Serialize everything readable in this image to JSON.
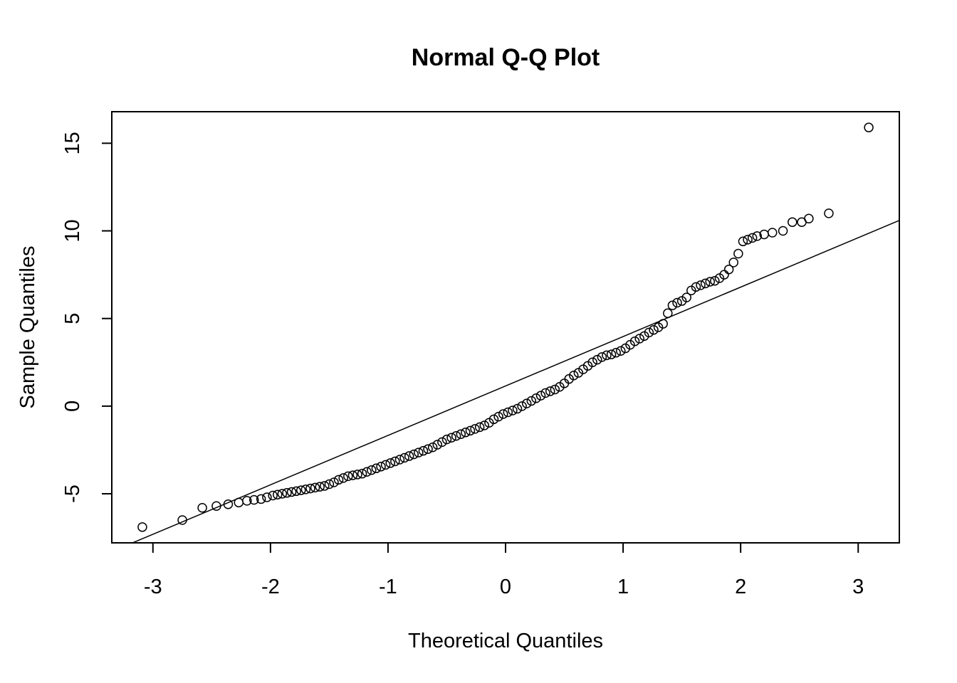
{
  "chart_data": {
    "type": "scatter",
    "title": "Normal Q-Q Plot",
    "xlabel": "Theoretical Quantiles",
    "ylabel": "Sample Quantiles",
    "xlim": [
      -3.35,
      3.35
    ],
    "ylim": [
      -7.8,
      16.8
    ],
    "xticks": [
      -3,
      -2,
      -1,
      0,
      1,
      2,
      3
    ],
    "xtick_labels": [
      "-3",
      "-2",
      "-1",
      "0",
      "1",
      "2",
      "3"
    ],
    "yticks": [
      -5,
      0,
      5,
      10,
      15
    ],
    "ytick_labels": [
      "-5",
      "0",
      "5",
      "10",
      "15"
    ],
    "grid": false,
    "reference_line": {
      "slope": 2.82,
      "intercept": 1.15
    },
    "points": [
      [
        -3.09,
        -6.9
      ],
      [
        -2.75,
        -6.5
      ],
      [
        -2.58,
        -5.8
      ],
      [
        -2.46,
        -5.7
      ],
      [
        -2.36,
        -5.6
      ],
      [
        -2.27,
        -5.5
      ],
      [
        -2.2,
        -5.4
      ],
      [
        -2.14,
        -5.35
      ],
      [
        -2.08,
        -5.3
      ],
      [
        -2.03,
        -5.2
      ],
      [
        -1.98,
        -5.1
      ],
      [
        -1.94,
        -5.05
      ],
      [
        -1.9,
        -5.0
      ],
      [
        -1.86,
        -4.95
      ],
      [
        -1.82,
        -4.9
      ],
      [
        -1.78,
        -4.85
      ],
      [
        -1.74,
        -4.8
      ],
      [
        -1.7,
        -4.75
      ],
      [
        -1.66,
        -4.7
      ],
      [
        -1.62,
        -4.65
      ],
      [
        -1.58,
        -4.6
      ],
      [
        -1.54,
        -4.55
      ],
      [
        -1.5,
        -4.45
      ],
      [
        -1.46,
        -4.35
      ],
      [
        -1.42,
        -4.2
      ],
      [
        -1.38,
        -4.1
      ],
      [
        -1.34,
        -4.0
      ],
      [
        -1.3,
        -3.95
      ],
      [
        -1.26,
        -3.9
      ],
      [
        -1.22,
        -3.85
      ],
      [
        -1.18,
        -3.75
      ],
      [
        -1.14,
        -3.65
      ],
      [
        -1.1,
        -3.55
      ],
      [
        -1.06,
        -3.45
      ],
      [
        -1.02,
        -3.35
      ],
      [
        -0.98,
        -3.25
      ],
      [
        -0.94,
        -3.15
      ],
      [
        -0.9,
        -3.05
      ],
      [
        -0.86,
        -2.95
      ],
      [
        -0.82,
        -2.85
      ],
      [
        -0.78,
        -2.75
      ],
      [
        -0.74,
        -2.65
      ],
      [
        -0.7,
        -2.55
      ],
      [
        -0.66,
        -2.45
      ],
      [
        -0.62,
        -2.35
      ],
      [
        -0.58,
        -2.2
      ],
      [
        -0.54,
        -2.05
      ],
      [
        -0.5,
        -1.9
      ],
      [
        -0.46,
        -1.8
      ],
      [
        -0.42,
        -1.7
      ],
      [
        -0.38,
        -1.6
      ],
      [
        -0.34,
        -1.5
      ],
      [
        -0.3,
        -1.4
      ],
      [
        -0.26,
        -1.3
      ],
      [
        -0.22,
        -1.2
      ],
      [
        -0.18,
        -1.1
      ],
      [
        -0.14,
        -0.95
      ],
      [
        -0.1,
        -0.75
      ],
      [
        -0.06,
        -0.6
      ],
      [
        -0.02,
        -0.45
      ],
      [
        0.02,
        -0.35
      ],
      [
        0.06,
        -0.25
      ],
      [
        0.1,
        -0.15
      ],
      [
        0.14,
        0.0
      ],
      [
        0.18,
        0.15
      ],
      [
        0.22,
        0.3
      ],
      [
        0.26,
        0.45
      ],
      [
        0.3,
        0.6
      ],
      [
        0.34,
        0.75
      ],
      [
        0.38,
        0.85
      ],
      [
        0.42,
        0.95
      ],
      [
        0.46,
        1.1
      ],
      [
        0.5,
        1.3
      ],
      [
        0.54,
        1.55
      ],
      [
        0.58,
        1.75
      ],
      [
        0.62,
        1.9
      ],
      [
        0.66,
        2.1
      ],
      [
        0.7,
        2.3
      ],
      [
        0.74,
        2.5
      ],
      [
        0.78,
        2.65
      ],
      [
        0.82,
        2.8
      ],
      [
        0.86,
        2.9
      ],
      [
        0.9,
        2.95
      ],
      [
        0.94,
        3.05
      ],
      [
        0.98,
        3.15
      ],
      [
        1.02,
        3.3
      ],
      [
        1.06,
        3.5
      ],
      [
        1.1,
        3.7
      ],
      [
        1.14,
        3.85
      ],
      [
        1.18,
        4.0
      ],
      [
        1.22,
        4.2
      ],
      [
        1.26,
        4.35
      ],
      [
        1.3,
        4.5
      ],
      [
        1.34,
        4.7
      ],
      [
        1.38,
        5.3
      ],
      [
        1.42,
        5.75
      ],
      [
        1.46,
        5.9
      ],
      [
        1.5,
        6.0
      ],
      [
        1.54,
        6.2
      ],
      [
        1.58,
        6.6
      ],
      [
        1.62,
        6.8
      ],
      [
        1.66,
        6.9
      ],
      [
        1.7,
        7.0
      ],
      [
        1.74,
        7.1
      ],
      [
        1.78,
        7.15
      ],
      [
        1.82,
        7.3
      ],
      [
        1.86,
        7.5
      ],
      [
        1.9,
        7.8
      ],
      [
        1.94,
        8.2
      ],
      [
        1.98,
        8.7
      ],
      [
        2.02,
        9.4
      ],
      [
        2.06,
        9.5
      ],
      [
        2.1,
        9.6
      ],
      [
        2.14,
        9.7
      ],
      [
        2.2,
        9.8
      ],
      [
        2.27,
        9.9
      ],
      [
        2.36,
        10.0
      ],
      [
        2.44,
        10.5
      ],
      [
        2.52,
        10.5
      ],
      [
        2.58,
        10.7
      ],
      [
        2.75,
        11.0
      ],
      [
        3.09,
        15.9
      ]
    ]
  }
}
